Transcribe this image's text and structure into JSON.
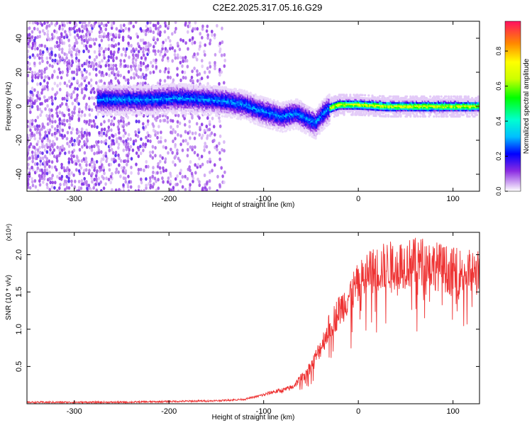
{
  "title": "C2E2.2025.317.05.16.G29",
  "chart_data": [
    {
      "type": "heatmap",
      "xlabel": "Height of straight line (km)",
      "ylabel": "Frequency (Hz)",
      "xlim": [
        -350,
        128
      ],
      "ylim": [
        -50,
        50
      ],
      "xticks": [
        -300,
        -200,
        -100,
        0,
        100
      ],
      "yticks": [
        -40,
        -20,
        0,
        20,
        40
      ],
      "colorbar": {
        "label": "Normalized spectral amplitude",
        "range": [
          0.0,
          0.97
        ],
        "ticks": [
          0.0,
          0.2,
          0.4,
          0.6,
          0.8
        ]
      },
      "ridge": {
        "x": [
          -275,
          -220,
          -190,
          -160,
          -140,
          -120,
          -100,
          -80,
          -65,
          -55,
          -45,
          -38,
          -30,
          -20,
          0,
          30,
          60,
          100,
          128
        ],
        "y": [
          4,
          4,
          5,
          4,
          3,
          1,
          -3,
          -6,
          -4,
          -7,
          -10,
          -5,
          -1,
          1,
          1,
          0,
          0,
          0,
          0
        ]
      },
      "noise_region_x": [
        -350,
        -140
      ]
    },
    {
      "type": "line",
      "xlabel": "Height of straight line (km)",
      "ylabel": "SNR (10 * v/v)",
      "yscale_label": "(x10⁴)",
      "xlim": [
        -350,
        128
      ],
      "ylim": [
        0,
        2.3
      ],
      "xticks": [
        -300,
        -200,
        -100,
        0,
        100
      ],
      "yticks": [
        0.5,
        1.0,
        1.5,
        2.0
      ],
      "series": [
        {
          "name": "SNR",
          "color": "#ee3333",
          "x": [
            -350,
            -300,
            -250,
            -200,
            -150,
            -120,
            -100,
            -90,
            -80,
            -70,
            -60,
            -50,
            -40,
            -30,
            -20,
            -10,
            0,
            10,
            20,
            30,
            50,
            70,
            100,
            128
          ],
          "y": [
            0.02,
            0.02,
            0.02,
            0.03,
            0.04,
            0.06,
            0.12,
            0.16,
            0.18,
            0.22,
            0.35,
            0.5,
            0.75,
            1.05,
            1.25,
            1.45,
            1.6,
            1.75,
            1.8,
            1.85,
            1.88,
            1.9,
            1.78,
            1.75
          ]
        }
      ]
    }
  ]
}
